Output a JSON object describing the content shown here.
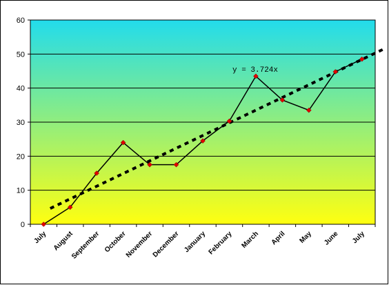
{
  "chart_data": {
    "type": "line",
    "title": "",
    "xlabel": "",
    "ylabel": "",
    "categories": [
      "July",
      "August",
      "September",
      "October",
      "November",
      "December",
      "January",
      "February",
      "March",
      "April",
      "May",
      "June",
      "July"
    ],
    "series": [
      {
        "values": [
          0,
          5,
          15,
          24,
          17.5,
          17.5,
          24.5,
          30.3,
          43.5,
          36.5,
          33.5,
          44.8,
          48.5
        ],
        "color": "#000000",
        "marker_color": "#e00000"
      }
    ],
    "trendline": {
      "type": "linear",
      "slope": 3.724,
      "equation_label": "y = 3.724x",
      "style": "dotted",
      "color": "#000000"
    },
    "ylim": [
      0,
      60
    ],
    "yticks": [
      0,
      10,
      20,
      30,
      40,
      50,
      60
    ],
    "grid": true,
    "legend": "none",
    "background_gradient": [
      "#22dcec",
      "#ffff10"
    ]
  }
}
